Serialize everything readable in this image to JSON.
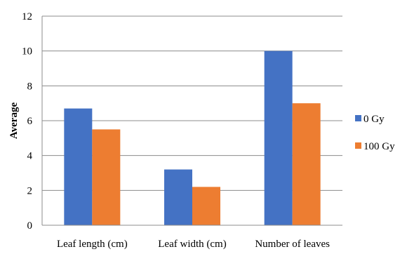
{
  "chart_data": {
    "type": "bar",
    "title": "",
    "xlabel": "",
    "ylabel": "Average",
    "ylim": [
      0,
      12
    ],
    "yticks": [
      0,
      2,
      4,
      6,
      8,
      10,
      12
    ],
    "grid": "horizontal",
    "legend_position": "right",
    "categories": [
      "Leaf length (cm)",
      "Leaf width (cm)",
      "Number of leaves"
    ],
    "series": [
      {
        "name": "0 Gy",
        "values": [
          6.7,
          3.2,
          10.0
        ],
        "color": "#4472C4"
      },
      {
        "name": "100 Gy",
        "values": [
          5.5,
          2.2,
          7.0
        ],
        "color": "#ED7D31"
      }
    ]
  }
}
